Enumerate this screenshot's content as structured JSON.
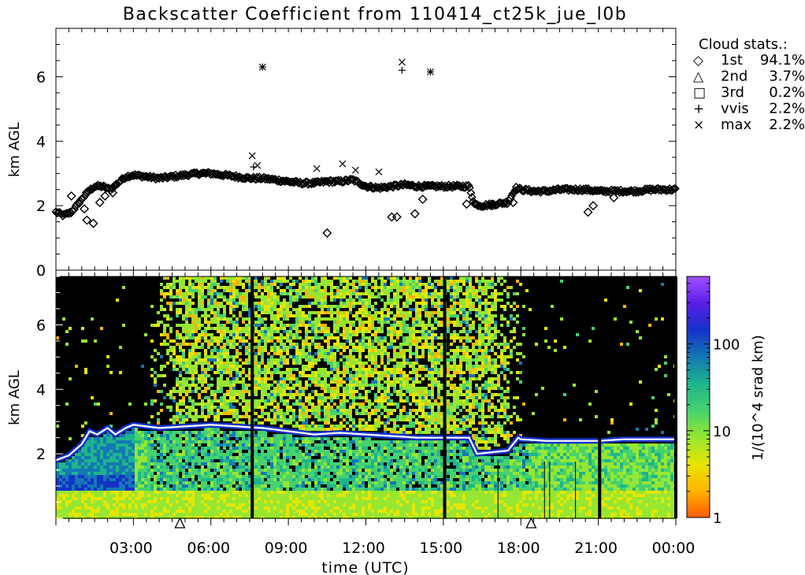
{
  "title": "Backscatter Coefficient from 110414_ct25k_jue_l0b",
  "colors": {
    "background": "#ffffff",
    "axes": "#000000",
    "image_bg": "#000000"
  },
  "chart_data": [
    {
      "type": "scatter",
      "panel": "cloud-base heights",
      "ylabel": "km AGL",
      "ylim": [
        0,
        7.5
      ],
      "yticks": [
        0,
        2,
        4,
        6
      ],
      "xlim_hours": [
        0,
        24
      ],
      "legend": {
        "placement": "top-right",
        "title": "Cloud stats.:",
        "entries": [
          {
            "marker": "diamond",
            "symbol": "◇",
            "label": "1st",
            "value": "94.1%"
          },
          {
            "marker": "triangle",
            "symbol": "△",
            "label": "2nd",
            "value": "3.7%"
          },
          {
            "marker": "square",
            "symbol": "□",
            "label": "3rd",
            "value": "0.2%"
          },
          {
            "marker": "plus",
            "symbol": "+",
            "label": "vvis",
            "value": "2.2%"
          },
          {
            "marker": "x",
            "symbol": "×",
            "label": "max",
            "value": "2.2%"
          }
        ]
      },
      "series": [
        {
          "marker": "diamond",
          "band_hours": [
            0.0,
            0.3,
            0.6,
            0.9,
            1.2,
            1.5,
            1.8,
            2.1,
            2.4,
            2.7,
            3.0,
            3.5,
            4.0,
            4.5,
            5.0,
            5.5,
            6.0,
            6.5,
            7.0,
            7.5,
            8.0,
            8.5,
            9.0,
            9.5,
            10.0,
            10.5,
            11.0,
            11.5,
            12.0,
            12.5,
            13.0,
            13.5,
            14.0,
            14.5,
            15.0,
            15.5,
            16.0,
            16.2,
            16.5,
            17.0,
            17.5,
            17.8,
            18.0,
            18.5,
            19.0,
            19.5,
            20.0,
            20.5,
            21.0,
            21.5,
            22.0,
            22.5,
            23.0,
            23.5,
            24.0
          ],
          "band_km": [
            1.8,
            1.7,
            1.8,
            2.1,
            2.4,
            2.6,
            2.6,
            2.5,
            2.7,
            2.9,
            2.95,
            2.9,
            2.85,
            2.9,
            2.95,
            3.0,
            3.0,
            2.95,
            2.9,
            2.85,
            2.85,
            2.8,
            2.75,
            2.7,
            2.7,
            2.75,
            2.75,
            2.8,
            2.6,
            2.55,
            2.6,
            2.65,
            2.6,
            2.6,
            2.6,
            2.6,
            2.6,
            2.05,
            2.0,
            2.05,
            2.1,
            2.55,
            2.5,
            2.45,
            2.45,
            2.5,
            2.5,
            2.5,
            2.45,
            2.45,
            2.45,
            2.45,
            2.5,
            2.5,
            2.5
          ],
          "outliers": [
            {
              "t": 0.6,
              "h": 2.3
            },
            {
              "t": 1.1,
              "h": 1.9
            },
            {
              "t": 1.2,
              "h": 1.55
            },
            {
              "t": 1.45,
              "h": 1.45
            },
            {
              "t": 1.7,
              "h": 2.1
            },
            {
              "t": 1.9,
              "h": 2.3
            },
            {
              "t": 2.2,
              "h": 2.4
            },
            {
              "t": 10.5,
              "h": 1.15
            },
            {
              "t": 13.0,
              "h": 1.65
            },
            {
              "t": 13.2,
              "h": 1.65
            },
            {
              "t": 13.9,
              "h": 1.75
            },
            {
              "t": 14.2,
              "h": 2.2
            },
            {
              "t": 15.9,
              "h": 2.05
            },
            {
              "t": 16.9,
              "h": 2.0
            },
            {
              "t": 17.7,
              "h": 2.1
            },
            {
              "t": 20.6,
              "h": 1.8
            },
            {
              "t": 20.8,
              "h": 2.0
            },
            {
              "t": 21.6,
              "h": 2.25
            }
          ]
        },
        {
          "marker": "x",
          "points": [
            {
              "t": 7.6,
              "h": 3.55
            },
            {
              "t": 7.8,
              "h": 3.25
            },
            {
              "t": 8.0,
              "h": 6.3
            },
            {
              "t": 10.1,
              "h": 3.15
            },
            {
              "t": 11.1,
              "h": 3.3
            },
            {
              "t": 11.6,
              "h": 3.1
            },
            {
              "t": 12.5,
              "h": 3.05
            },
            {
              "t": 13.4,
              "h": 6.45
            },
            {
              "t": 14.5,
              "h": 6.15
            }
          ]
        },
        {
          "marker": "plus",
          "points": [
            {
              "t": 7.65,
              "h": 3.2
            },
            {
              "t": 8.0,
              "h": 6.3
            },
            {
              "t": 13.4,
              "h": 6.2
            },
            {
              "t": 14.5,
              "h": 6.15
            }
          ]
        }
      ]
    },
    {
      "type": "heatmap",
      "panel": "backscatter profile",
      "ylabel": "km AGL",
      "xlabel": "time (UTC)",
      "ylim": [
        0,
        7.5
      ],
      "yticks": [
        2,
        4,
        6
      ],
      "xlim_hours": [
        0,
        24
      ],
      "xtick_hours": [
        3,
        6,
        9,
        12,
        15,
        18,
        21,
        24
      ],
      "xtick_labels": [
        "03:00",
        "06:00",
        "09:00",
        "12:00",
        "15:00",
        "18:00",
        "21:00",
        "00:00"
      ],
      "layer_top_hours": [
        0.0,
        0.5,
        1.0,
        1.3,
        1.6,
        2.0,
        2.3,
        2.7,
        3.0,
        4.0,
        5.0,
        6.0,
        7.0,
        8.0,
        9.0,
        10.0,
        11.0,
        12.0,
        13.0,
        14.0,
        15.0,
        16.0,
        16.3,
        16.9,
        17.5,
        17.9,
        18.0,
        19.0,
        20.0,
        21.0,
        22.0,
        23.0,
        24.0
      ],
      "layer_top_km": [
        1.8,
        1.95,
        2.3,
        2.7,
        2.6,
        2.8,
        2.6,
        2.8,
        2.9,
        2.8,
        2.85,
        2.9,
        2.85,
        2.8,
        2.7,
        2.6,
        2.65,
        2.6,
        2.55,
        2.5,
        2.5,
        2.5,
        2.0,
        2.05,
        2.1,
        2.5,
        2.45,
        2.4,
        2.4,
        2.4,
        2.45,
        2.45,
        2.45
      ],
      "signal_noise_window_hours": [
        3.5,
        18.3
      ],
      "dropout_hours": [
        7.6,
        15.05,
        21.05,
        24.0
      ],
      "triangle_marker_hours": [
        4.8,
        18.4
      ],
      "colorbar": {
        "label": "1/(10^4 srad km)",
        "scale": "log",
        "range": [
          1,
          600
        ],
        "ticks": [
          1,
          10,
          100
        ],
        "tick_labels": [
          "1",
          "10",
          "100"
        ],
        "palette": [
          "#ff5a00",
          "#ffb400",
          "#e6e600",
          "#96e632",
          "#46d26e",
          "#1eb48c",
          "#1478b4",
          "#1432c8",
          "#5a1ee6",
          "#a050ff"
        ]
      }
    }
  ]
}
